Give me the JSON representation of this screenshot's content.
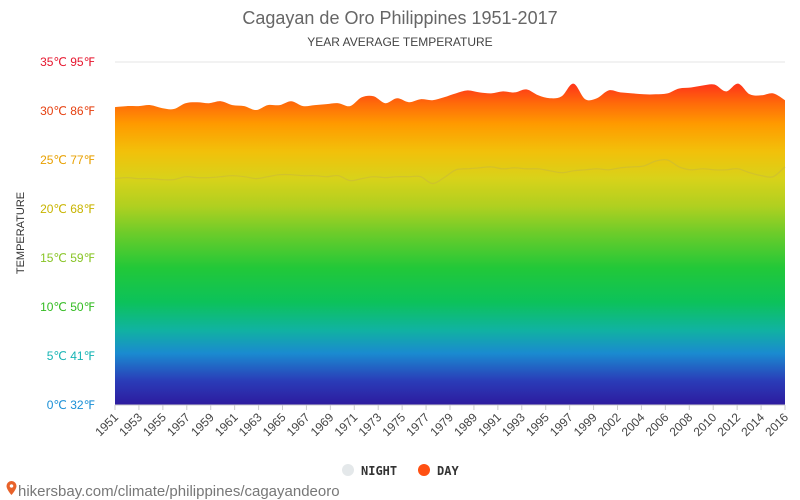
{
  "chart_data": {
    "type": "area",
    "title": "Cagayan de Oro Philippines 1951-2017",
    "subtitle": "YEAR AVERAGE TEMPERATURE",
    "ylabel": "TEMPERATURE",
    "ylim": [
      0,
      35
    ],
    "y_ticks": [
      {
        "value": 0,
        "label": "0℃ 32℉",
        "color": "#1a8fd6"
      },
      {
        "value": 5,
        "label": "5℃ 41℉",
        "color": "#16b4b4"
      },
      {
        "value": 10,
        "label": "10℃ 50℉",
        "color": "#33bb22"
      },
      {
        "value": 15,
        "label": "15℃ 59℉",
        "color": "#88c425"
      },
      {
        "value": 20,
        "label": "20℃ 68℉",
        "color": "#c8b400"
      },
      {
        "value": 25,
        "label": "25℃ 77℉",
        "color": "#e8a000"
      },
      {
        "value": 30,
        "label": "30℃ 86℉",
        "color": "#e64010"
      },
      {
        "value": 35,
        "label": "35℃ 95℉",
        "color": "#e6162e"
      }
    ],
    "x_tick_labels": [
      "1951",
      "1953",
      "1955",
      "1957",
      "1959",
      "1961",
      "1963",
      "1965",
      "1967",
      "1969",
      "1971",
      "1973",
      "1975",
      "1977",
      "1979",
      "1989",
      "1991",
      "1993",
      "1995",
      "1997",
      "1999",
      "2002",
      "2004",
      "2006",
      "2008",
      "2010",
      "2012",
      "2014",
      "2016"
    ],
    "x": [
      "1951",
      "1952",
      "1953",
      "1954",
      "1955",
      "1956",
      "1957",
      "1958",
      "1959",
      "1960",
      "1961",
      "1962",
      "1963",
      "1964",
      "1965",
      "1966",
      "1967",
      "1968",
      "1969",
      "1970",
      "1971",
      "1972",
      "1973",
      "1974",
      "1975",
      "1976",
      "1977",
      "1978",
      "1979",
      "1980",
      "1989",
      "1990",
      "1991",
      "1992",
      "1993",
      "1994",
      "1995",
      "1996",
      "1997",
      "1998",
      "1999",
      "2000",
      "2002",
      "2003",
      "2004",
      "2005",
      "2006",
      "2007",
      "2008",
      "2009",
      "2010",
      "2011",
      "2012",
      "2013",
      "2014",
      "2015",
      "2016",
      "2017"
    ],
    "series": [
      {
        "name": "DAY",
        "color": "#ff5012",
        "values": [
          30.4,
          30.5,
          30.5,
          30.6,
          30.3,
          30.2,
          30.8,
          30.9,
          30.8,
          31.0,
          30.6,
          30.5,
          30.1,
          30.6,
          30.6,
          31.0,
          30.5,
          30.6,
          30.7,
          30.8,
          30.5,
          31.4,
          31.5,
          30.8,
          31.3,
          30.9,
          31.2,
          31.1,
          31.4,
          31.8,
          32.1,
          31.9,
          31.8,
          32.0,
          31.9,
          32.2,
          31.6,
          31.3,
          31.5,
          32.8,
          31.2,
          31.3,
          32.1,
          31.9,
          31.8,
          31.7,
          31.7,
          31.8,
          32.3,
          32.4,
          32.6,
          32.7,
          32.0,
          32.8,
          31.7,
          31.6,
          31.8,
          31.1
        ]
      },
      {
        "name": "NIGHT",
        "color": "#e4e8ea",
        "values": [
          23.1,
          23.2,
          23.1,
          23.1,
          23.0,
          23.0,
          23.3,
          23.2,
          23.2,
          23.3,
          23.4,
          23.3,
          23.1,
          23.3,
          23.5,
          23.5,
          23.4,
          23.4,
          23.3,
          23.4,
          22.9,
          23.1,
          23.3,
          23.2,
          23.3,
          23.3,
          23.3,
          22.6,
          23.2,
          24.0,
          24.1,
          24.2,
          24.3,
          24.1,
          24.2,
          24.1,
          24.1,
          23.9,
          23.7,
          23.9,
          24.0,
          24.1,
          24.0,
          24.2,
          24.3,
          24.4,
          24.9,
          25.0,
          24.3,
          24.0,
          24.1,
          24.0,
          24.0,
          24.1,
          23.7,
          23.4,
          23.3,
          24.3
        ]
      }
    ],
    "legend": {
      "placement": "bottom-center",
      "items": [
        "NIGHT",
        "DAY"
      ]
    },
    "grid": true
  },
  "footer": {
    "text": "hikersbay.com/climate/philippines/cagayandeoro",
    "pin_color": "#e8622a"
  }
}
